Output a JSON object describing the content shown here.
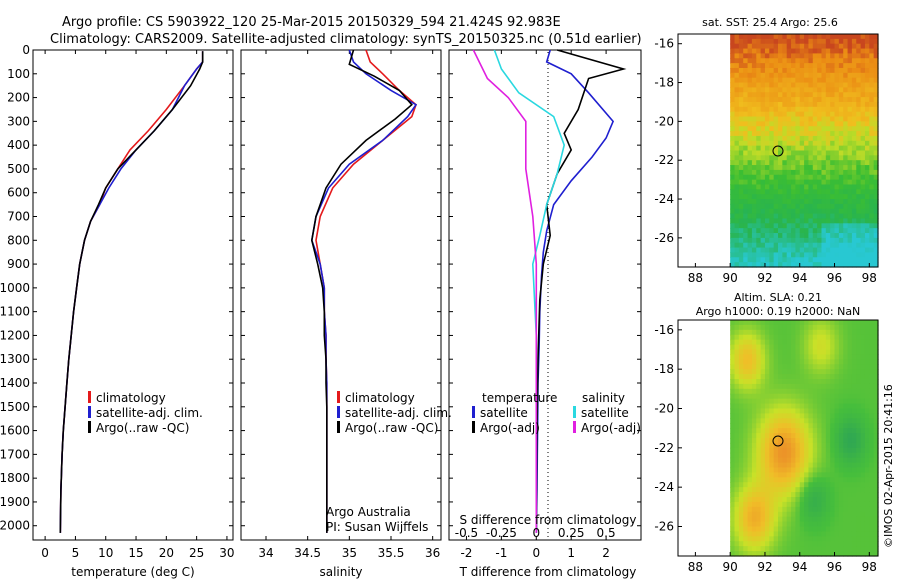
{
  "header": {
    "line1": "Argo profile: CS 5903922_120 25-Mar-2015 20150329_594 21.424S 92.983E",
    "line2": "Climatology: CARS2009. Satellite-adjusted climatology: synTS_20150325.nc (0.51d earlier)"
  },
  "colors": {
    "climatology": "#e41a1c",
    "satellite": "#1f1fcf",
    "argo": "#000000",
    "sat_salinity": "#2ad8e0",
    "argo_salinity": "#e020e0"
  },
  "chart_data": [
    {
      "id": "temperature",
      "type": "line",
      "xlabel": "temperature (deg C)",
      "ylabel": "",
      "xlim": [
        -2,
        31
      ],
      "ylim": [
        2060,
        0
      ],
      "xticks": [
        "0",
        "5",
        "10",
        "15",
        "20",
        "25",
        "30"
      ],
      "xtick_values": [
        0,
        5,
        10,
        15,
        20,
        25,
        30
      ],
      "yticks": [
        "0",
        "100",
        "200",
        "300",
        "400",
        "500",
        "600",
        "700",
        "800",
        "900",
        "1000",
        "1100",
        "1200",
        "1300",
        "1400",
        "1500",
        "1600",
        "1700",
        "1800",
        "1900",
        "2000"
      ],
      "ytick_values": [
        0,
        100,
        200,
        300,
        400,
        500,
        600,
        700,
        800,
        900,
        1000,
        1100,
        1200,
        1300,
        1400,
        1500,
        1600,
        1700,
        1800,
        1900,
        2000
      ],
      "legend": [
        "climatology",
        "satellite-adj. clim.",
        "Argo(..raw -QC)"
      ],
      "series": [
        {
          "name": "climatology",
          "color": "#e41a1c",
          "x": [
            26,
            26,
            25,
            23,
            20,
            17,
            14,
            12,
            10,
            9,
            7.5,
            6.5,
            5.7,
            5.2,
            4.7,
            4.3,
            3.9,
            3.6,
            3.3,
            3.0,
            2.8,
            2.6,
            2.5
          ],
          "y": [
            5,
            50,
            80,
            150,
            250,
            340,
            420,
            500,
            580,
            650,
            720,
            800,
            900,
            1000,
            1100,
            1200,
            1300,
            1400,
            1500,
            1600,
            1700,
            1850,
            2030
          ]
        },
        {
          "name": "satellite-adj. clim.",
          "color": "#1f1fcf",
          "x": [
            26,
            26,
            25,
            23,
            21,
            18,
            15,
            12.5,
            10.5,
            9,
            7.5,
            6.5,
            5.7,
            5.2,
            4.7,
            4.3,
            3.9,
            3.6,
            3.3,
            3.0,
            2.8,
            2.6,
            2.5
          ],
          "y": [
            5,
            50,
            80,
            150,
            250,
            340,
            420,
            500,
            580,
            650,
            720,
            800,
            900,
            1000,
            1100,
            1200,
            1300,
            1400,
            1500,
            1600,
            1700,
            1850,
            2030
          ]
        },
        {
          "name": "Argo(..raw -QC)",
          "color": "#000000",
          "x": [
            26,
            26,
            25.5,
            24,
            21,
            18,
            15,
            12,
            10,
            8.8,
            7.5,
            6.5,
            5.7,
            5.2,
            4.7,
            4.3,
            3.9,
            3.6,
            3.3,
            3.0,
            2.8,
            2.6,
            2.5
          ],
          "y": [
            5,
            50,
            80,
            150,
            250,
            340,
            420,
            500,
            580,
            650,
            720,
            800,
            900,
            1000,
            1100,
            1200,
            1300,
            1400,
            1500,
            1600,
            1700,
            1850,
            2030
          ]
        }
      ]
    },
    {
      "id": "salinity",
      "type": "line",
      "xlabel": "salinity",
      "ylabel": "",
      "xlim": [
        33.7,
        36.1
      ],
      "ylim": [
        2060,
        0
      ],
      "xticks": [
        "34",
        "34.5",
        "35",
        "35.5",
        "36"
      ],
      "xtick_values": [
        34,
        34.5,
        35,
        35.5,
        36
      ],
      "legend": [
        "climatology",
        "satellite-adj. clim.",
        "Argo(..raw -QC)"
      ],
      "annotations": [
        "Argo Australia",
        "PI: Susan Wijffels"
      ],
      "series": [
        {
          "name": "climatology",
          "color": "#e41a1c",
          "x": [
            35.2,
            35.25,
            35.4,
            35.6,
            35.8,
            35.75,
            35.4,
            35.05,
            34.8,
            34.65,
            34.6,
            34.65,
            34.7,
            34.7,
            34.72,
            34.72,
            34.73,
            34.73,
            34.73,
            34.73,
            34.73,
            34.73,
            34.73
          ],
          "y": [
            0,
            50,
            100,
            170,
            230,
            280,
            380,
            480,
            580,
            700,
            800,
            900,
            1000,
            1100,
            1200,
            1300,
            1400,
            1500,
            1600,
            1700,
            1800,
            1900,
            2030
          ]
        },
        {
          "name": "satellite-adj. clim.",
          "color": "#1f1fcf",
          "x": [
            35.0,
            35.05,
            35.2,
            35.5,
            35.8,
            35.7,
            35.4,
            35.0,
            34.75,
            34.6,
            34.55,
            34.65,
            34.7,
            34.7,
            34.72,
            34.72,
            34.73,
            34.73,
            34.73,
            34.73,
            34.73,
            34.73,
            34.73
          ],
          "y": [
            0,
            50,
            100,
            170,
            230,
            280,
            380,
            480,
            580,
            700,
            800,
            900,
            1000,
            1100,
            1200,
            1300,
            1400,
            1500,
            1600,
            1700,
            1800,
            1900,
            2030
          ]
        },
        {
          "name": "Argo(..raw -QC)",
          "color": "#000000",
          "x": [
            35.05,
            35.0,
            35.3,
            35.6,
            35.75,
            35.55,
            35.2,
            34.9,
            34.72,
            34.6,
            34.55,
            34.62,
            34.68,
            34.7,
            34.7,
            34.72,
            34.72,
            34.73,
            34.73,
            34.73,
            34.73,
            34.73,
            34.73
          ],
          "y": [
            0,
            60,
            110,
            170,
            230,
            290,
            380,
            480,
            580,
            700,
            800,
            900,
            1000,
            1100,
            1200,
            1300,
            1400,
            1500,
            1600,
            1700,
            1800,
            1900,
            2030
          ]
        }
      ]
    },
    {
      "id": "difference",
      "type": "line",
      "xlabel": "T difference from climatology",
      "xlabel_top": "S difference from climatology",
      "xlim": [
        -2.5,
        3.0
      ],
      "ylim": [
        2060,
        0
      ],
      "xticks": [
        "-2",
        "-1",
        "0",
        "1",
        "2"
      ],
      "xtick_values": [
        -2,
        -1,
        0,
        1,
        2
      ],
      "sticks": [
        "-0.5",
        "-0.25",
        "0",
        "0.25",
        "0.5"
      ],
      "stick_values": [
        -2,
        -1,
        0,
        1,
        2
      ],
      "legend_left_title": "temperature",
      "legend_right_title": "salinity",
      "legend_left": [
        "satellite",
        "Argo(-adj)"
      ],
      "legend_right": [
        "satellite",
        "Argo(-adj)"
      ],
      "series": [
        {
          "name": "satellite",
          "color": "#1f1fcf",
          "x": [
            0.4,
            0.3,
            1.0,
            1.5,
            2.2,
            2.0,
            1.6,
            1.0,
            0.5,
            0.3,
            0.2,
            0.15,
            0.1,
            0.08,
            0.05,
            0.04,
            0.03,
            0.02,
            0.01,
            0.0
          ],
          "y": [
            0,
            50,
            100,
            180,
            300,
            370,
            450,
            550,
            650,
            760,
            850,
            950,
            1100,
            1250,
            1400,
            1550,
            1700,
            1850,
            1950,
            2030
          ]
        },
        {
          "name": "Argo(-adj)",
          "color": "#000000",
          "x": [
            0.6,
            2.5,
            1.5,
            1.2,
            0.8,
            1.0,
            0.6,
            0.3,
            0.4,
            0.2,
            0.1,
            0.05,
            0.02,
            0.0
          ],
          "y": [
            0,
            80,
            120,
            250,
            350,
            420,
            520,
            650,
            780,
            900,
            1050,
            1300,
            1600,
            2030
          ]
        },
        {
          "name": "satellite",
          "color": "#2ad8e0",
          "x": [
            -1.2,
            -1.0,
            -0.5,
            0.5,
            0.8,
            0.6,
            0.3,
            0.1,
            -0.1,
            0.0,
            0.0,
            0.0
          ],
          "y": [
            0,
            80,
            180,
            280,
            400,
            520,
            650,
            780,
            900,
            1200,
            1600,
            2030
          ]
        },
        {
          "name": "Argo(-adj)",
          "color": "#e020e0",
          "x": [
            -1.8,
            -1.4,
            -0.8,
            -0.3,
            -0.3,
            -0.1,
            0.0,
            0.0,
            0.0
          ],
          "y": [
            0,
            120,
            200,
            300,
            500,
            700,
            900,
            1300,
            2030
          ]
        }
      ]
    },
    {
      "id": "sst_map",
      "type": "heatmap",
      "title": "sat. SST: 25.4 Argo: 25.6",
      "xlim": [
        87,
        98.5
      ],
      "ylim": [
        -27.5,
        -15.5
      ],
      "xticks": [
        "88",
        "90",
        "92",
        "94",
        "96",
        "98"
      ],
      "xtick_values": [
        88,
        90,
        92,
        94,
        96,
        98
      ],
      "yticks": [
        "-16",
        "-18",
        "-20",
        "-22",
        "-24",
        "-26"
      ],
      "ytick_values": [
        -16,
        -18,
        -20,
        -22,
        -24,
        -26
      ],
      "data_xlim": [
        90,
        98.5
      ],
      "marker": {
        "lon": 92.983,
        "lat": -21.424
      }
    },
    {
      "id": "sla_map",
      "type": "heatmap",
      "title": "Altim. SLA: 0.21",
      "subtitle": "Argo h1000: 0.19 h2000: NaN",
      "xlim": [
        87,
        98.5
      ],
      "ylim": [
        -27.5,
        -15.5
      ],
      "xticks": [
        "88",
        "90",
        "92",
        "94",
        "96",
        "98"
      ],
      "xtick_values": [
        88,
        90,
        92,
        94,
        96,
        98
      ],
      "yticks": [
        "-16",
        "-18",
        "-20",
        "-22",
        "-24",
        "-26"
      ],
      "ytick_values": [
        -16,
        -18,
        -20,
        -22,
        -24,
        -26
      ],
      "data_xlim": [
        90,
        98.5
      ],
      "marker": {
        "lon": 92.983,
        "lat": -21.424
      }
    }
  ],
  "credit": "©IMOS 02-Apr-2015 20:41:16"
}
